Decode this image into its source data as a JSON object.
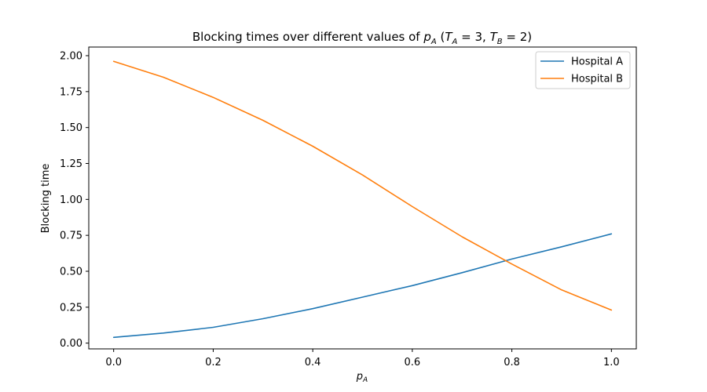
{
  "chart_data": {
    "type": "line",
    "title": "Blocking times over different values of p_A (T_A = 3, T_B = 2)",
    "title_parts": {
      "prefix": "Blocking times over different values of ",
      "var": "p",
      "var_sub": "A",
      "paren_open": " (",
      "t1": "T",
      "t1_sub": "A",
      "eq1": " = 3, ",
      "t2": "T",
      "t2_sub": "B",
      "eq2": " = 2)"
    },
    "xlabel": "p",
    "xlabel_sub": "A",
    "ylabel": "Blocking time",
    "xlim": [
      -0.05,
      1.05
    ],
    "ylim": [
      -0.04,
      2.06
    ],
    "x_ticks": [
      0.0,
      0.2,
      0.4,
      0.6,
      0.8,
      1.0
    ],
    "x_tick_labels": [
      "0.0",
      "0.2",
      "0.4",
      "0.6",
      "0.8",
      "1.0"
    ],
    "y_ticks": [
      0.0,
      0.25,
      0.5,
      0.75,
      1.0,
      1.25,
      1.5,
      1.75,
      2.0
    ],
    "y_tick_labels": [
      "0.00",
      "0.25",
      "0.50",
      "0.75",
      "1.00",
      "1.25",
      "1.50",
      "1.75",
      "2.00"
    ],
    "grid": false,
    "legend_position": "top-right",
    "x": [
      0.0,
      0.1,
      0.2,
      0.3,
      0.4,
      0.5,
      0.6,
      0.7,
      0.8,
      0.9,
      1.0
    ],
    "series": [
      {
        "name": "Hospital A",
        "color": "#1f77b4",
        "values": [
          0.04,
          0.07,
          0.11,
          0.17,
          0.24,
          0.32,
          0.4,
          0.49,
          0.585,
          0.67,
          0.76
        ]
      },
      {
        "name": "Hospital B",
        "color": "#ff7f0e",
        "values": [
          1.96,
          1.85,
          1.71,
          1.55,
          1.37,
          1.17,
          0.95,
          0.74,
          0.55,
          0.37,
          0.23
        ]
      }
    ]
  }
}
